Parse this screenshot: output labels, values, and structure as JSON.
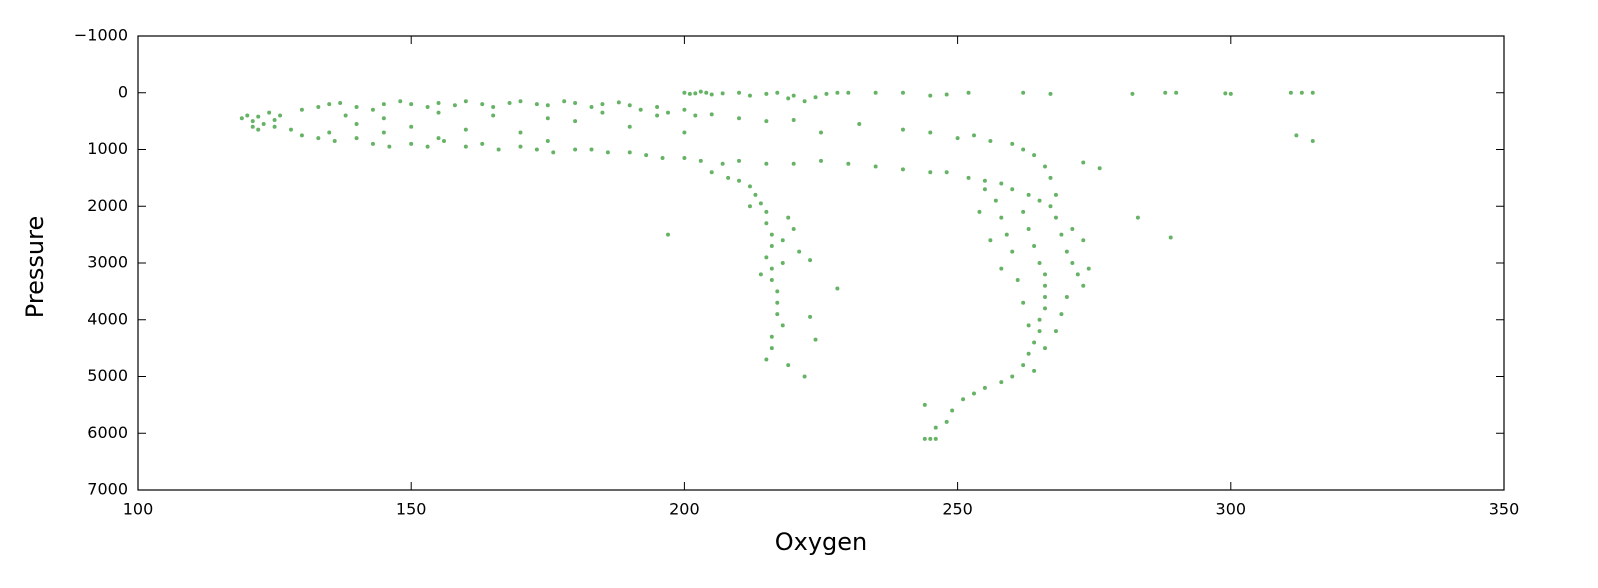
{
  "chart_data": {
    "type": "scatter",
    "x_label": "Oxygen",
    "y_label": "Pressure",
    "color": "#008000",
    "y_inverted": true,
    "grid": false,
    "xlim": [
      100,
      350
    ],
    "xticks": [
      100,
      150,
      200,
      250,
      300,
      350
    ],
    "ylim": [
      -1000,
      7000
    ],
    "yticks": [
      {
        "value": -1000,
        "label": "−1000"
      },
      0,
      1000,
      2000,
      3000,
      4000,
      5000,
      6000,
      7000
    ],
    "x": [
      119,
      120,
      121,
      122,
      123,
      121,
      124,
      125,
      122,
      126,
      130,
      133,
      135,
      137,
      140,
      143,
      145,
      148,
      150,
      153,
      155,
      158,
      160,
      163,
      165,
      168,
      170,
      173,
      175,
      178,
      180,
      183,
      185,
      188,
      190,
      192,
      195,
      197,
      200,
      202,
      205,
      138,
      145,
      155,
      165,
      175,
      185,
      195,
      210,
      215,
      220,
      225,
      125,
      128,
      130,
      133,
      136,
      140,
      143,
      146,
      150,
      153,
      156,
      160,
      163,
      166,
      170,
      173,
      176,
      180,
      183,
      186,
      190,
      193,
      196,
      200,
      203,
      207,
      210,
      215,
      220,
      225,
      230,
      235,
      240,
      245,
      248,
      252,
      255,
      258,
      260,
      263,
      265,
      267,
      135,
      145,
      150,
      160,
      170,
      180,
      190,
      200,
      140,
      155,
      175,
      200,
      201,
      202,
      203,
      204,
      205,
      207,
      210,
      212,
      215,
      217,
      219,
      220,
      222,
      224,
      226,
      228,
      230,
      235,
      240,
      245,
      248,
      252,
      262,
      267,
      282,
      288,
      290,
      299,
      300,
      311,
      313,
      315,
      232,
      240,
      245,
      250,
      253,
      256,
      260,
      262,
      264,
      266,
      267,
      268,
      205,
      208,
      210,
      212,
      213,
      214,
      215,
      215,
      216,
      216,
      215,
      216,
      216,
      217,
      217,
      217,
      218,
      216,
      216,
      215,
      219,
      214,
      218,
      212,
      219,
      220,
      218,
      221,
      223,
      223,
      224,
      197,
      222,
      228,
      283,
      289,
      312,
      315,
      273,
      276,
      255,
      257,
      258,
      259,
      260,
      262,
      263,
      264,
      265,
      266,
      266,
      266,
      266,
      265,
      265,
      264,
      263,
      262,
      260,
      258,
      255,
      253,
      251,
      249,
      248,
      246,
      245,
      244,
      246,
      244,
      268,
      269,
      270,
      271,
      272,
      273,
      270,
      269,
      268,
      266,
      264,
      261,
      262,
      263,
      254,
      256,
      258,
      271,
      274,
      273
    ],
    "values": [
      450,
      400,
      500,
      420,
      550,
      600,
      350,
      480,
      650,
      400,
      300,
      250,
      200,
      180,
      250,
      300,
      200,
      150,
      200,
      250,
      180,
      220,
      150,
      200,
      250,
      180,
      150,
      200,
      220,
      150,
      180,
      250,
      200,
      170,
      220,
      300,
      250,
      350,
      300,
      400,
      380,
      400,
      450,
      350,
      400,
      450,
      350,
      400,
      450,
      500,
      480,
      700,
      600,
      650,
      750,
      800,
      850,
      800,
      900,
      950,
      900,
      950,
      850,
      950,
      900,
      1000,
      950,
      1000,
      1050,
      1000,
      1000,
      1050,
      1050,
      1100,
      1150,
      1150,
      1200,
      1250,
      1200,
      1250,
      1250,
      1200,
      1250,
      1300,
      1350,
      1400,
      1400,
      1500,
      1550,
      1600,
      1700,
      1800,
      1900,
      2000,
      700,
      700,
      600,
      650,
      700,
      500,
      600,
      700,
      550,
      800,
      850,
      0,
      20,
      10,
      -20,
      0,
      30,
      10,
      0,
      50,
      20,
      0,
      100,
      50,
      150,
      80,
      20,
      0,
      0,
      0,
      0,
      50,
      30,
      0,
      0,
      20,
      20,
      0,
      0,
      10,
      20,
      0,
      0,
      0,
      550,
      650,
      700,
      800,
      750,
      850,
      900,
      1000,
      1100,
      1300,
      1500,
      1800,
      1400,
      1500,
      1550,
      1650,
      1800,
      1950,
      2100,
      2300,
      2500,
      2700,
      2900,
      3100,
      3300,
      3500,
      3700,
      3900,
      4100,
      4300,
      4500,
      4700,
      4800,
      3200,
      2600,
      2000,
      2200,
      2400,
      3000,
      2800,
      2950,
      3950,
      4350,
      2500,
      5000,
      3450,
      2200,
      2550,
      750,
      850,
      1230,
      1330,
      1700,
      1900,
      2200,
      2500,
      2800,
      2100,
      2400,
      2700,
      3000,
      3200,
      3400,
      3600,
      3800,
      4000,
      4200,
      4400,
      4600,
      4800,
      5000,
      5100,
      5200,
      5300,
      5400,
      5600,
      5800,
      5900,
      6100,
      6100,
      6100,
      5500,
      2200,
      2500,
      2800,
      3000,
      3200,
      3400,
      3600,
      3900,
      4200,
      4500,
      4900,
      3300,
      3700,
      4100,
      2100,
      2600,
      3100,
      2400,
      3100,
      2600
    ]
  }
}
